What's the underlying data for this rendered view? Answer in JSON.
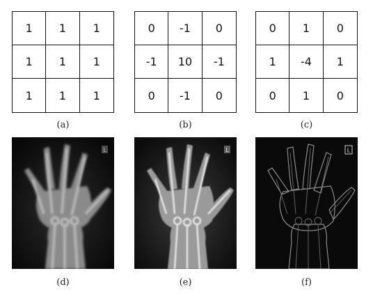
{
  "kernels": [
    {
      "caption": "(a)",
      "cells": [
        "1",
        "1",
        "1",
        "1",
        "1",
        "1",
        "1",
        "1",
        "1"
      ]
    },
    {
      "caption": "(b)",
      "cells": [
        "0",
        "-1",
        "0",
        "-1",
        "10",
        "-1",
        "0",
        "-1",
        "0"
      ]
    },
    {
      "caption": "(c)",
      "cells": [
        "0",
        "1",
        "0",
        "1",
        "-4",
        "1",
        "0",
        "1",
        "0"
      ]
    }
  ],
  "images": [
    {
      "caption": "(d)",
      "marker": "L"
    },
    {
      "caption": "(e)",
      "marker": "L"
    },
    {
      "caption": "(f)",
      "marker": "L"
    }
  ]
}
